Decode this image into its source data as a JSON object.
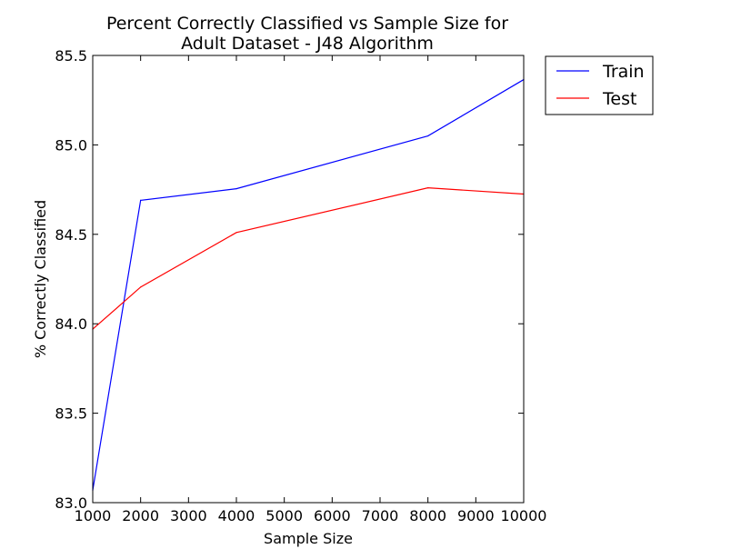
{
  "chart_data": {
    "type": "line",
    "title_lines": [
      "Percent Correctly Classified vs Sample Size for",
      "Adult Dataset - J48 Algorithm"
    ],
    "xlabel": "Sample Size",
    "ylabel": "% Correctly Classified",
    "xlim": [
      1000,
      10000
    ],
    "ylim": [
      83.0,
      85.5
    ],
    "xticks": [
      1000,
      2000,
      3000,
      4000,
      5000,
      6000,
      7000,
      8000,
      9000,
      10000
    ],
    "xtick_labels": [
      "1000",
      "2000",
      "3000",
      "4000",
      "5000",
      "6000",
      "7000",
      "8000",
      "9000",
      "10000"
    ],
    "yticks": [
      83.0,
      83.5,
      84.0,
      84.5,
      85.0,
      85.5
    ],
    "ytick_labels": [
      "83.0",
      "83.5",
      "84.0",
      "84.5",
      "85.0",
      "85.5"
    ],
    "grid": false,
    "legend_position": "outside-top-right",
    "series": [
      {
        "name": "Train",
        "color": "#0000ff",
        "x": [
          1000,
          2000,
          4000,
          8000,
          10000
        ],
        "y": [
          83.07,
          84.69,
          84.755,
          85.05,
          85.365
        ]
      },
      {
        "name": "Test",
        "color": "#ff0000",
        "x": [
          1000,
          2000,
          4000,
          8000,
          10000
        ],
        "y": [
          83.97,
          84.205,
          84.51,
          84.76,
          84.725
        ]
      }
    ]
  }
}
